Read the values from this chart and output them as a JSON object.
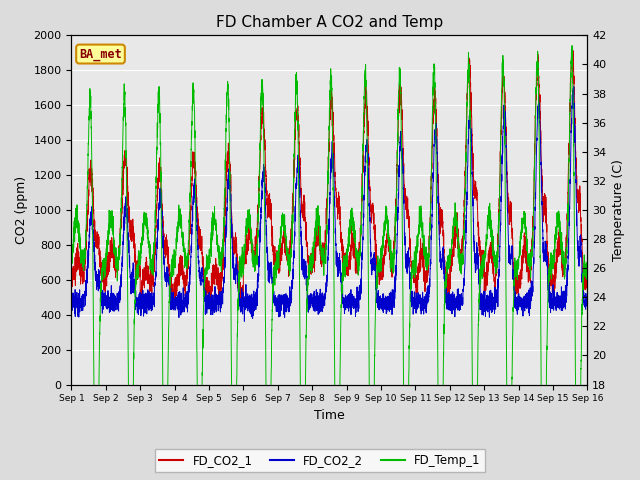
{
  "title": "FD Chamber A CO2 and Temp",
  "xlabel": "Time",
  "ylabel_left": "CO2 (ppm)",
  "ylabel_right": "Temperature (C)",
  "annotation": "BA_met",
  "ylim_left": [
    0,
    2000
  ],
  "ylim_right": [
    18,
    42
  ],
  "yticks_left": [
    0,
    200,
    400,
    600,
    800,
    1000,
    1200,
    1400,
    1600,
    1800,
    2000
  ],
  "yticks_right": [
    18,
    20,
    22,
    24,
    26,
    28,
    30,
    32,
    34,
    36,
    38,
    40,
    42
  ],
  "xtick_labels": [
    "Sep 1",
    "Sep 2",
    "Sep 3",
    "Sep 4",
    "Sep 5",
    "Sep 6",
    "Sep 7",
    "Sep 8",
    "Sep 9",
    "Sep 10",
    "Sep 11",
    "Sep 12",
    "Sep 13",
    "Sep 14",
    "Sep 15",
    "Sep 16"
  ],
  "color_co2_1": "#cc0000",
  "color_co2_2": "#0000cc",
  "color_temp": "#00bb00",
  "legend_labels": [
    "FD_CO2_1",
    "FD_CO2_2",
    "FD_Temp_1"
  ],
  "bg_color": "#dcdcdc",
  "plot_bg": "#e8e8e8",
  "annotation_bg": "#ffff99",
  "annotation_border": "#cc8800",
  "annotation_text_color": "#880000",
  "grid_color": "#ffffff",
  "num_days": 15,
  "points_per_day": 288,
  "seed": 7
}
